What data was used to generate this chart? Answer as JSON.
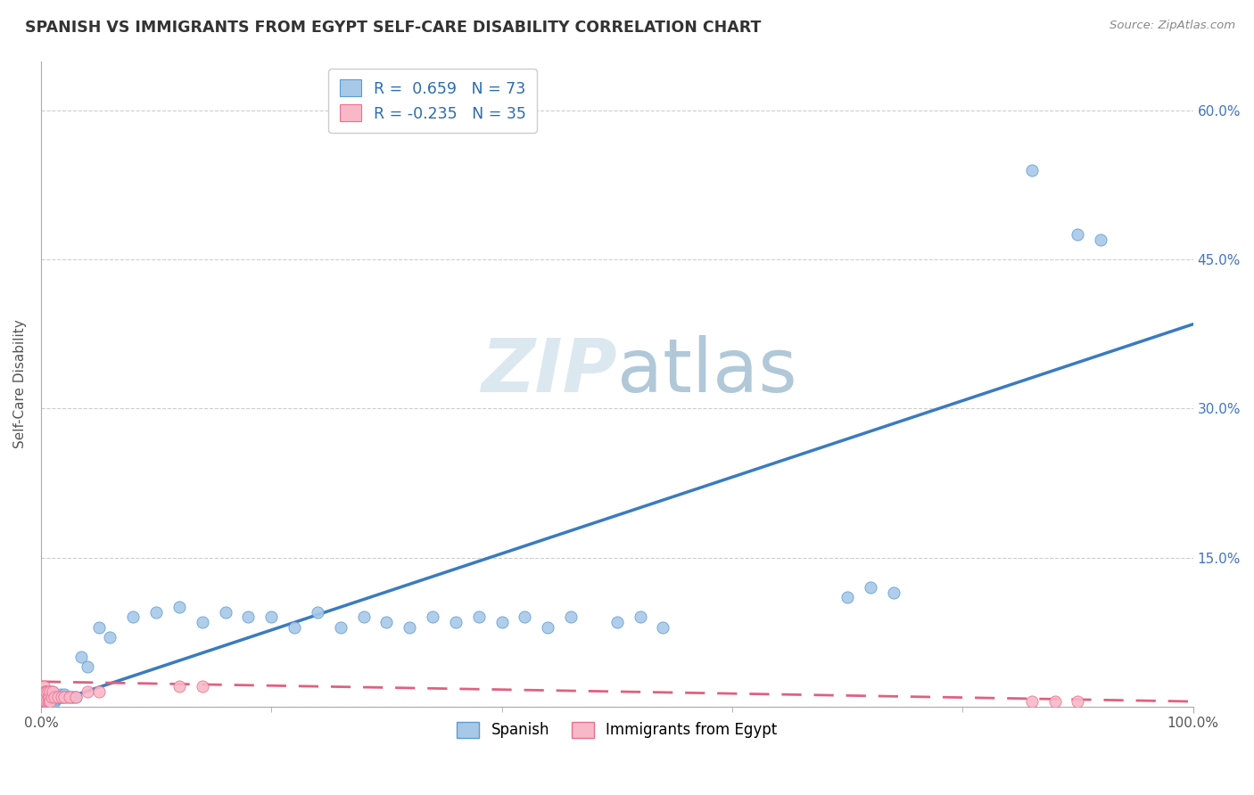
{
  "title": "SPANISH VS IMMIGRANTS FROM EGYPT SELF-CARE DISABILITY CORRELATION CHART",
  "source": "Source: ZipAtlas.com",
  "ylabel": "Self-Care Disability",
  "legend_label1": "Spanish",
  "legend_label2": "Immigrants from Egypt",
  "color_spanish_fill": "#a8c8e8",
  "color_spanish_edge": "#5b9bd5",
  "color_egypt_fill": "#f9b8c8",
  "color_egypt_edge": "#e87090",
  "color_line_spanish": "#3a7bbf",
  "color_line_egypt": "#e06080",
  "color_r_value": "#2b6cb0",
  "color_n_value": "#2b6cb0",
  "background_color": "#ffffff",
  "grid_color": "#c8c8c8",
  "title_color": "#333333",
  "watermark_color": "#dce8f0",
  "xlim": [
    0.0,
    1.0
  ],
  "ylim": [
    0.0,
    0.65
  ],
  "yticks": [
    0.0,
    0.15,
    0.3,
    0.45,
    0.6
  ],
  "ytick_labels_right": [
    "",
    "15.0%",
    "30.0%",
    "45.0%",
    "60.0%"
  ],
  "xticks": [
    0.0,
    1.0
  ],
  "xtick_labels": [
    "0.0%",
    "100.0%"
  ],
  "spanish_line_x": [
    0.0,
    1.0
  ],
  "spanish_line_y": [
    0.0,
    0.385
  ],
  "egypt_line_x": [
    0.0,
    1.0
  ],
  "egypt_line_y": [
    0.025,
    0.005
  ],
  "sp_x": [
    0.001,
    0.002,
    0.002,
    0.003,
    0.003,
    0.003,
    0.004,
    0.004,
    0.004,
    0.005,
    0.005,
    0.005,
    0.006,
    0.006,
    0.007,
    0.007,
    0.007,
    0.008,
    0.008,
    0.008,
    0.009,
    0.009,
    0.01,
    0.01,
    0.01,
    0.012,
    0.012,
    0.013,
    0.014,
    0.015,
    0.016,
    0.017,
    0.018,
    0.019,
    0.02,
    0.022,
    0.024,
    0.026,
    0.028,
    0.03,
    0.035,
    0.04,
    0.05,
    0.06,
    0.08,
    0.1,
    0.12,
    0.14,
    0.16,
    0.18,
    0.2,
    0.22,
    0.24,
    0.26,
    0.28,
    0.3,
    0.32,
    0.34,
    0.36,
    0.38,
    0.4,
    0.42,
    0.44,
    0.46,
    0.5,
    0.52,
    0.54,
    0.7,
    0.72,
    0.74,
    0.86,
    0.9,
    0.92
  ],
  "sp_y": [
    0.005,
    0.005,
    0.01,
    0.005,
    0.01,
    0.015,
    0.005,
    0.01,
    0.015,
    0.005,
    0.01,
    0.015,
    0.005,
    0.01,
    0.005,
    0.01,
    0.015,
    0.005,
    0.01,
    0.015,
    0.005,
    0.01,
    0.005,
    0.01,
    0.015,
    0.005,
    0.01,
    0.008,
    0.01,
    0.01,
    0.01,
    0.012,
    0.01,
    0.01,
    0.012,
    0.01,
    0.01,
    0.01,
    0.01,
    0.01,
    0.05,
    0.04,
    0.08,
    0.07,
    0.09,
    0.095,
    0.1,
    0.085,
    0.095,
    0.09,
    0.09,
    0.08,
    0.095,
    0.08,
    0.09,
    0.085,
    0.08,
    0.09,
    0.085,
    0.09,
    0.085,
    0.09,
    0.08,
    0.09,
    0.085,
    0.09,
    0.08,
    0.11,
    0.12,
    0.115,
    0.54,
    0.475,
    0.47
  ],
  "eg_x": [
    0.001,
    0.001,
    0.002,
    0.002,
    0.002,
    0.002,
    0.003,
    0.003,
    0.003,
    0.004,
    0.004,
    0.004,
    0.005,
    0.005,
    0.006,
    0.006,
    0.007,
    0.007,
    0.008,
    0.008,
    0.009,
    0.01,
    0.012,
    0.015,
    0.018,
    0.02,
    0.025,
    0.03,
    0.04,
    0.05,
    0.12,
    0.14,
    0.86,
    0.88,
    0.9
  ],
  "eg_y": [
    0.005,
    0.01,
    0.005,
    0.01,
    0.015,
    0.02,
    0.005,
    0.01,
    0.015,
    0.005,
    0.01,
    0.015,
    0.005,
    0.015,
    0.005,
    0.015,
    0.005,
    0.01,
    0.005,
    0.015,
    0.01,
    0.015,
    0.01,
    0.01,
    0.01,
    0.01,
    0.01,
    0.01,
    0.015,
    0.015,
    0.02,
    0.02,
    0.005,
    0.005,
    0.005
  ]
}
